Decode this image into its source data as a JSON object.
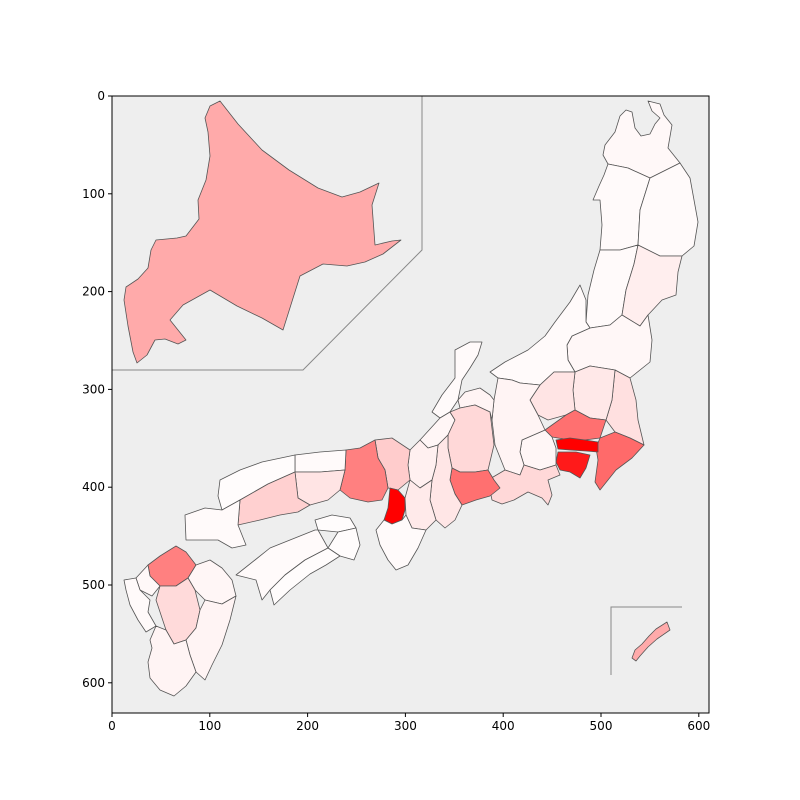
{
  "plot": {
    "x_axis": {
      "range": [
        0,
        610
      ],
      "ticks": [
        0,
        100,
        200,
        300,
        400,
        500,
        600
      ]
    },
    "y_axis": {
      "range": [
        0,
        630
      ],
      "inverted": true,
      "ticks": [
        0,
        100,
        200,
        300,
        400,
        500,
        600
      ]
    },
    "background_color": "#eeeeee",
    "low_color": "#fff7f7",
    "high_color": "#ff0000"
  },
  "map_regions": [
    {
      "id": "hokkaido",
      "intensity": 0.32,
      "color": "#ffaaaa"
    },
    {
      "id": "aomori",
      "intensity": 0.02,
      "color": "#fff8f8"
    },
    {
      "id": "iwate",
      "intensity": 0.02,
      "color": "#fffafa"
    },
    {
      "id": "akita",
      "intensity": 0.02,
      "color": "#fffafa"
    },
    {
      "id": "miyagi",
      "intensity": 0.08,
      "color": "#ffeeee"
    },
    {
      "id": "yamagata",
      "intensity": 0.02,
      "color": "#fffafa"
    },
    {
      "id": "fukushima",
      "intensity": 0.03,
      "color": "#fff7f7"
    },
    {
      "id": "niigata",
      "intensity": 0.02,
      "color": "#fffafa"
    },
    {
      "id": "ibaraki",
      "intensity": 0.12,
      "color": "#ffe0e0"
    },
    {
      "id": "tochigi",
      "intensity": 0.1,
      "color": "#ffe8e8"
    },
    {
      "id": "gunma",
      "intensity": 0.1,
      "color": "#ffe4e4"
    },
    {
      "id": "saitama",
      "intensity": 0.55,
      "color": "#ff7070"
    },
    {
      "id": "tokyo",
      "intensity": 1.0,
      "color": "#ff0000"
    },
    {
      "id": "chiba",
      "intensity": 0.55,
      "color": "#ff6a6a"
    },
    {
      "id": "kanagawa",
      "intensity": 0.95,
      "color": "#ff1a1a"
    },
    {
      "id": "yamanashi",
      "intensity": 0.03,
      "color": "#fff6f6"
    },
    {
      "id": "nagano",
      "intensity": 0.04,
      "color": "#fff4f4"
    },
    {
      "id": "shizuoka",
      "intensity": 0.15,
      "color": "#ffd8d8"
    },
    {
      "id": "toyama",
      "intensity": 0.03,
      "color": "#fff4f4"
    },
    {
      "id": "ishikawa",
      "intensity": 0.02,
      "color": "#fffafa"
    },
    {
      "id": "fukui",
      "intensity": 0.03,
      "color": "#fff6f6"
    },
    {
      "id": "gifu",
      "intensity": 0.15,
      "color": "#ffd8d8"
    },
    {
      "id": "aichi",
      "intensity": 0.55,
      "color": "#ff7070"
    },
    {
      "id": "mie",
      "intensity": 0.1,
      "color": "#ffe6e6"
    },
    {
      "id": "shiga",
      "intensity": 0.05,
      "color": "#fff0f0"
    },
    {
      "id": "kyoto",
      "intensity": 0.2,
      "color": "#ffcccc"
    },
    {
      "id": "osaka",
      "intensity": 1.0,
      "color": "#ff0000"
    },
    {
      "id": "hyogo",
      "intensity": 0.5,
      "color": "#ff8080"
    },
    {
      "id": "nara",
      "intensity": 0.08,
      "color": "#ffeaea"
    },
    {
      "id": "wakayama",
      "intensity": 0.02,
      "color": "#fffafa"
    },
    {
      "id": "tottori",
      "intensity": 0.02,
      "color": "#fffafa"
    },
    {
      "id": "shimane",
      "intensity": 0.01,
      "color": "#fffcfc"
    },
    {
      "id": "okayama",
      "intensity": 0.1,
      "color": "#ffe4e4"
    },
    {
      "id": "hiroshima",
      "intensity": 0.2,
      "color": "#ffd0d0"
    },
    {
      "id": "yamaguchi",
      "intensity": 0.02,
      "color": "#fffafa"
    },
    {
      "id": "tokushima",
      "intensity": 0.01,
      "color": "#fffcfc"
    },
    {
      "id": "kagawa",
      "intensity": 0.01,
      "color": "#fffcfc"
    },
    {
      "id": "ehime",
      "intensity": 0.02,
      "color": "#fffafa"
    },
    {
      "id": "kochi",
      "intensity": 0.01,
      "color": "#fffcfc"
    },
    {
      "id": "fukuoka",
      "intensity": 0.5,
      "color": "#ff8080"
    },
    {
      "id": "saga",
      "intensity": 0.02,
      "color": "#fff8f8"
    },
    {
      "id": "nagasaki",
      "intensity": 0.02,
      "color": "#fffafa"
    },
    {
      "id": "kumamoto",
      "intensity": 0.15,
      "color": "#ffdada"
    },
    {
      "id": "oita",
      "intensity": 0.03,
      "color": "#fff6f6"
    },
    {
      "id": "miyazaki",
      "intensity": 0.02,
      "color": "#fff4f4"
    },
    {
      "id": "kagoshima",
      "intensity": 0.03,
      "color": "#fff4f4"
    },
    {
      "id": "okinawa",
      "intensity": 0.3,
      "color": "#ffaaaa"
    }
  ]
}
